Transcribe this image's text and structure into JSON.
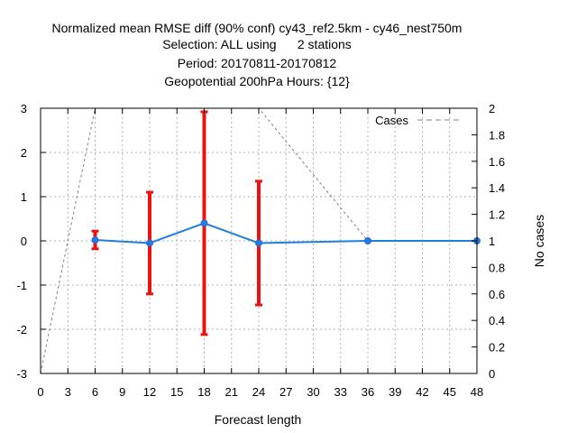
{
  "chart_data": {
    "type": "line",
    "title_lines": [
      "Normalized mean RMSE diff (90% conf) cy43_ref2.5km - cy46_nest750m",
      "Selection: ALL using      2 stations",
      "Period: 20170811-20170812",
      "Geopotential 200hPa   Hours: {12}"
    ],
    "xlabel": "Forecast length",
    "ylabel": "",
    "y2label": "No cases",
    "xlim": [
      0,
      48
    ],
    "ylim": [
      -3,
      3
    ],
    "y2lim": [
      0,
      2
    ],
    "x_ticks": [
      "0",
      "3",
      "6",
      "9",
      "12",
      "15",
      "18",
      "21",
      "24",
      "27",
      "30",
      "33",
      "36",
      "39",
      "42",
      "45",
      "48"
    ],
    "y_ticks": [
      "-3",
      "-2",
      "-1",
      "0",
      "1",
      "2",
      "3"
    ],
    "y2_ticks": [
      "0",
      "0.2",
      "0.4",
      "0.6",
      "0.8",
      "1",
      "1.2",
      "1.4",
      "1.6",
      "1.8",
      "2"
    ],
    "grid": true,
    "legend_position": "top-right",
    "colors": {
      "mean": "#1f7fe0",
      "errorbar": "#ee1111",
      "cases": "#808080"
    },
    "series": [
      {
        "role": "mean",
        "axis": "left",
        "x": [
          6,
          12,
          18,
          24,
          36,
          48
        ],
        "values": [
          0.02,
          -0.05,
          0.4,
          -0.05,
          0.0,
          0.0
        ],
        "error_low": [
          -0.18,
          -1.2,
          -2.12,
          -1.45,
          0.0,
          0.0
        ],
        "error_high": [
          0.22,
          1.1,
          2.92,
          1.35,
          0.0,
          0.0
        ]
      },
      {
        "role": "cases",
        "name": "Cases",
        "axis": "right",
        "x": [
          0,
          6,
          12,
          18,
          24,
          36,
          48
        ],
        "values": [
          0,
          2,
          2,
          2,
          2,
          1,
          1
        ]
      }
    ]
  }
}
